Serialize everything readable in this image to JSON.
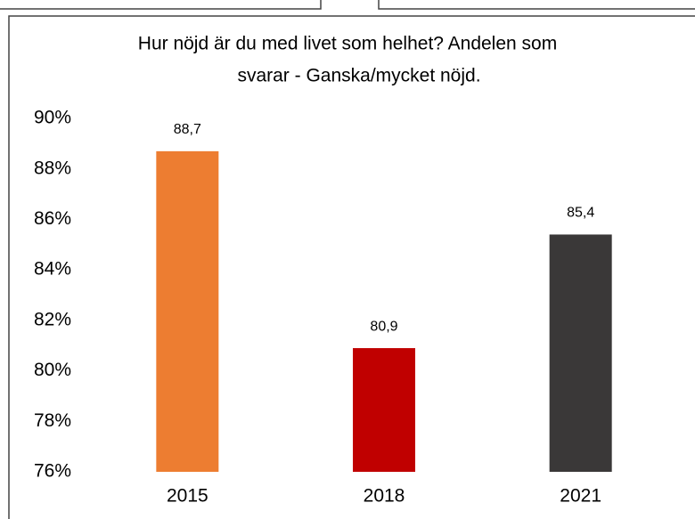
{
  "chart_data": {
    "type": "bar",
    "title": [
      "Hur nöjd är du med livet som helhet? Andelen som",
      "svarar - Ganska/mycket nöjd."
    ],
    "categories": [
      "2015",
      "2018",
      "2021"
    ],
    "values": [
      88.7,
      80.9,
      85.4
    ],
    "value_labels": [
      "88,7",
      "80,9",
      "85,4"
    ],
    "colors": [
      "#ed7d31",
      "#c00000",
      "#3a3838"
    ],
    "ylim": [
      76,
      90
    ],
    "yticks": [
      {
        "value": 76,
        "label": "76%"
      },
      {
        "value": 78,
        "label": "78%"
      },
      {
        "value": 80,
        "label": "80%"
      },
      {
        "value": 82,
        "label": "82%"
      },
      {
        "value": 84,
        "label": "84%"
      },
      {
        "value": 86,
        "label": "86%"
      },
      {
        "value": 88,
        "label": "88%"
      },
      {
        "value": 90,
        "label": "90%"
      }
    ],
    "grid": false
  }
}
